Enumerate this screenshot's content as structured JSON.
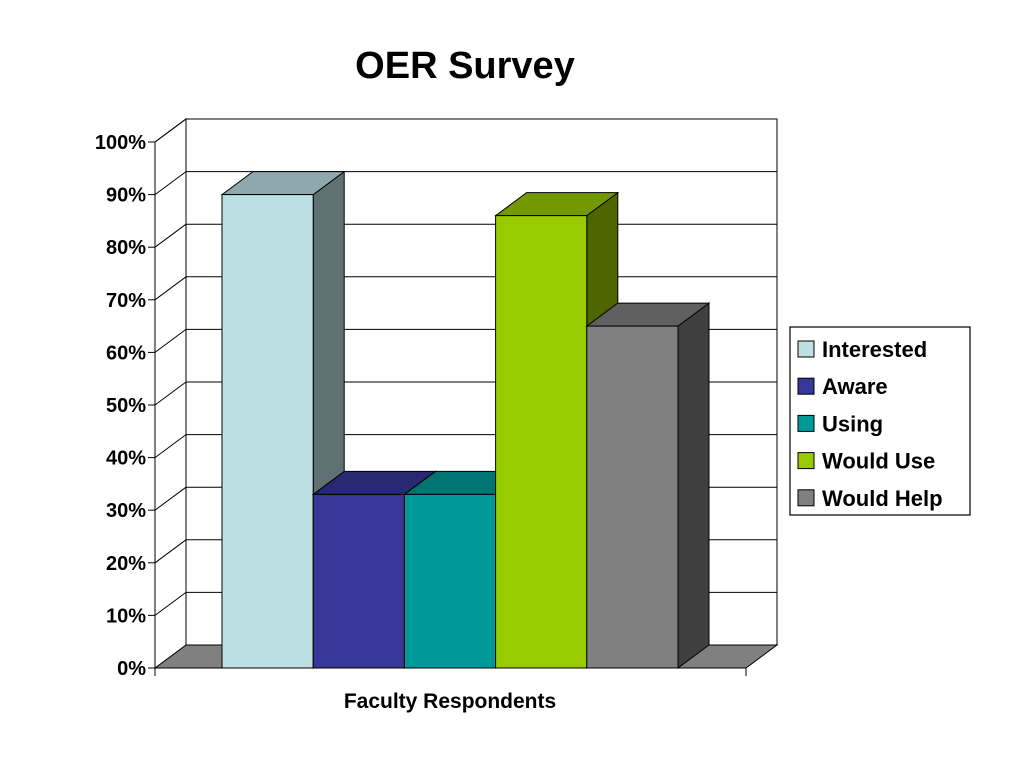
{
  "chart_data": {
    "type": "bar",
    "title": "OER Survey",
    "xlabel": "Faculty Respondents",
    "ylabel": "",
    "categories": [
      "Faculty Respondents"
    ],
    "ylim": [
      0,
      100
    ],
    "y_ticks": [
      "0%",
      "10%",
      "20%",
      "30%",
      "40%",
      "50%",
      "60%",
      "70%",
      "80%",
      "90%",
      "100%"
    ],
    "grid": true,
    "legend_position": "right",
    "series": [
      {
        "name": "Interested",
        "values": [
          90
        ],
        "color": "#BDE0E4",
        "side_color": "#5F7173",
        "top_color": "#8EA8AB"
      },
      {
        "name": "Aware",
        "values": [
          33
        ],
        "color": "#373699",
        "side_color": "#1C1B4D",
        "top_color": "#292873"
      },
      {
        "name": "Using",
        "values": [
          33
        ],
        "color": "#009999",
        "side_color": "#004D4D",
        "top_color": "#007373"
      },
      {
        "name": "Would Use",
        "values": [
          86
        ],
        "color": "#99CC00",
        "side_color": "#4D6600",
        "top_color": "#739900"
      },
      {
        "name": "Would Help",
        "values": [
          65
        ],
        "color": "#808080",
        "side_color": "#404040",
        "top_color": "#606060"
      }
    ]
  }
}
